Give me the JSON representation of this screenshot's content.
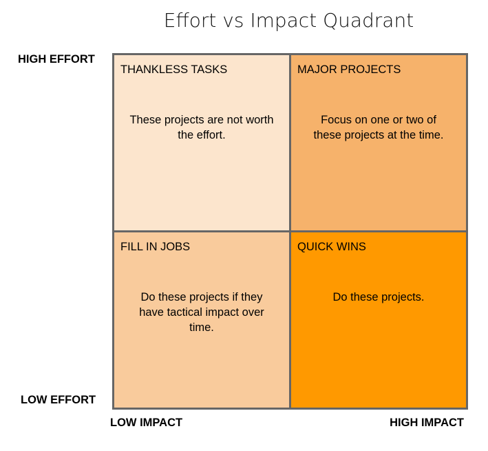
{
  "title": "Effort vs Impact Quadrant",
  "axes": {
    "y_high": "HIGH EFFORT",
    "y_low": "LOW EFFORT",
    "x_low": "LOW IMPACT",
    "x_high": "HIGH IMPACT"
  },
  "quadrants": {
    "top_left": {
      "title": "THANKLESS TASKS",
      "description": "These projects are not worth the effort.",
      "color": "#fce5cd"
    },
    "top_right": {
      "title": "MAJOR PROJECTS",
      "description": "Focus on one or two of these projects at the time.",
      "color": "#f6b26b"
    },
    "bottom_left": {
      "title": "FILL IN JOBS",
      "description": "Do these projects if they have tactical impact over time.",
      "color": "#f9cb9c"
    },
    "bottom_right": {
      "title": "QUICK WINS",
      "description": "Do these projects.",
      "color": "#ff9900"
    }
  },
  "colors": {
    "border": "#666666"
  }
}
